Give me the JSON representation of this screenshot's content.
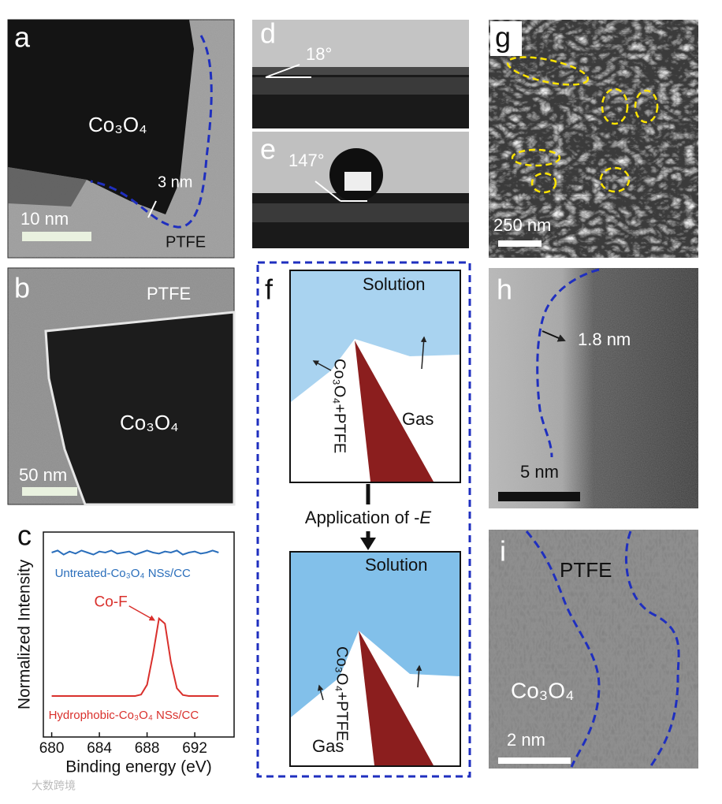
{
  "panels": {
    "a": {
      "label": "a",
      "material": "Co₃O₄",
      "thickness": "3 nm",
      "scale_bar": "10 nm",
      "coating": "PTFE"
    },
    "b": {
      "label": "b",
      "coating": "PTFE",
      "material": "Co₃O₄",
      "scale_bar": "50 nm"
    },
    "d": {
      "label": "d",
      "angle": "18°"
    },
    "e": {
      "label": "e",
      "angle": "147°"
    },
    "f": {
      "label": "f",
      "top": {
        "solution": "Solution",
        "electrode": "Co₃O₄+PTFE",
        "gas": "Gas"
      },
      "step_prefix": "Application of -",
      "step_symbol": "E",
      "bottom": {
        "solution": "Solution",
        "electrode": "Co₃O₄+PTFE",
        "gas": "Gas"
      }
    },
    "g": {
      "label": "g",
      "scale_bar": "250 nm"
    },
    "h": {
      "label": "h",
      "thickness": "1.8 nm",
      "scale_bar": "5 nm"
    },
    "i": {
      "label": "i",
      "coating": "PTFE",
      "material": "Co₃O₄",
      "scale_bar": "2 nm"
    }
  },
  "chart_data": {
    "type": "line",
    "panel_label": "c",
    "xlabel": "Binding energy (eV)",
    "ylabel": "Normalized Intensity",
    "annotation": "Co-F",
    "x": [
      680,
      680.5,
      681,
      681.5,
      682,
      682.5,
      683,
      683.5,
      684,
      684.5,
      685,
      685.5,
      686,
      686.5,
      687,
      687.5,
      688,
      688.5,
      689,
      689.5,
      690,
      690.5,
      691,
      691.5,
      692,
      692.5,
      693,
      693.5,
      694
    ],
    "series": [
      {
        "name": "Untreated-Co₃O₄ NSs/CC",
        "color": "#2a6ebb",
        "values": [
          0.9,
          0.91,
          0.89,
          0.905,
          0.895,
          0.91,
          0.9,
          0.89,
          0.905,
          0.9,
          0.91,
          0.895,
          0.9,
          0.905,
          0.89,
          0.9,
          0.91,
          0.9,
          0.895,
          0.905,
          0.9,
          0.91,
          0.89,
          0.9,
          0.905,
          0.895,
          0.9,
          0.91,
          0.9
        ]
      },
      {
        "name": "Hydrophobic-Co₃O₄ NSs/CC",
        "color": "#d9302c",
        "values": [
          0.2,
          0.2,
          0.2,
          0.2,
          0.2,
          0.2,
          0.2,
          0.2,
          0.2,
          0.2,
          0.2,
          0.2,
          0.2,
          0.2,
          0.2,
          0.207,
          0.255,
          0.403,
          0.578,
          0.553,
          0.365,
          0.238,
          0.205,
          0.2,
          0.2,
          0.2,
          0.2,
          0.2,
          0.2
        ]
      }
    ],
    "xlim": [
      679.3,
      695.3
    ],
    "ylim": [
      0,
      1
    ],
    "xticks": [
      680,
      684,
      688,
      692
    ]
  },
  "watermark": "大数跨境"
}
